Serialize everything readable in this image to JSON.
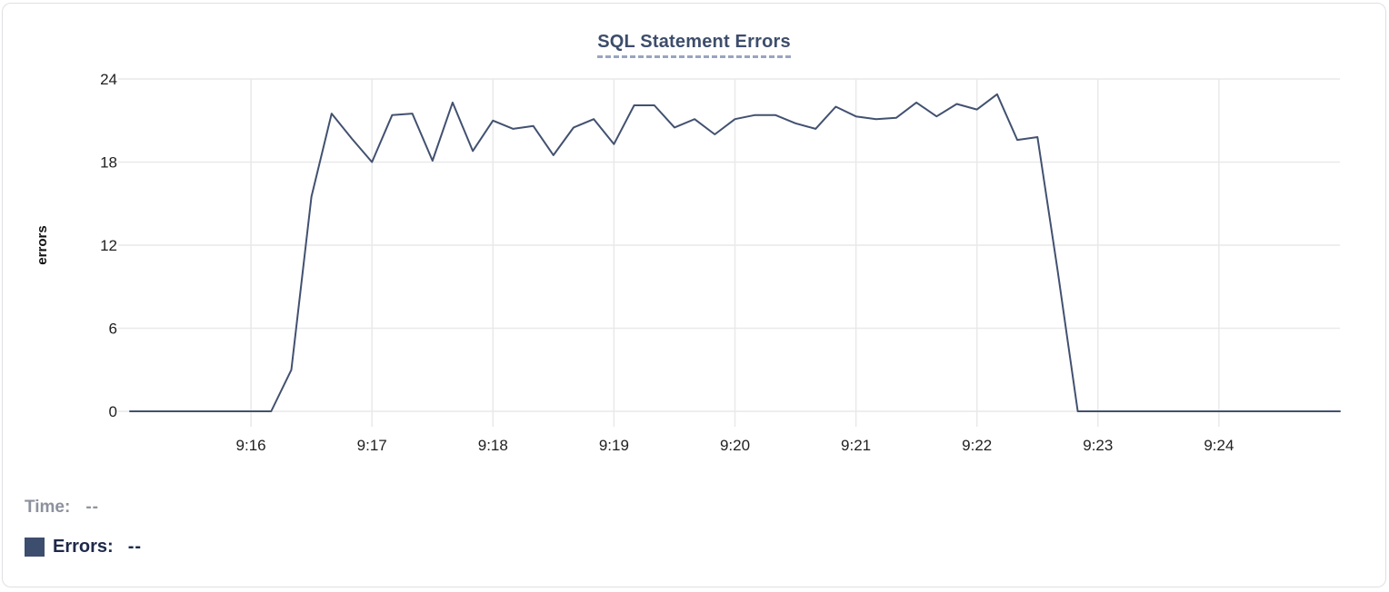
{
  "header": {
    "title": "SQL Statement Errors"
  },
  "tooltip": {
    "time_label": "Time:",
    "time_value": "--",
    "errors_label": "Errors:",
    "errors_value": "--"
  },
  "colors": {
    "line": "#425170",
    "swatch": "#3d4d6e",
    "title": "#3d4d6b",
    "title_underline": "#9aa4c0",
    "grid": "#e9e9e9",
    "tick_text": "#1f1f1f",
    "axis_title_text": "#111111",
    "time_muted": "#8d919c",
    "errors_text": "#1d2949",
    "card_border": "#e0e0e4"
  },
  "icons": {
    "legend_swatch": "square-swatch"
  },
  "chart_data": {
    "type": "line",
    "title": "SQL Statement Errors",
    "xlabel": "",
    "ylabel": "errors",
    "grid": true,
    "legend_position": "bottom-left",
    "ylim": [
      0,
      24
    ],
    "y_ticks": [
      0,
      6,
      12,
      18,
      24
    ],
    "x_ticks": [
      "9:16",
      "9:17",
      "9:18",
      "9:19",
      "9:20",
      "9:21",
      "9:22",
      "9:23",
      "9:24"
    ],
    "x_domain": [
      "9:15:00",
      "9:25:00"
    ],
    "series": [
      {
        "name": "Errors",
        "color": "#425170",
        "points": [
          [
            "9:15:00",
            0
          ],
          [
            "9:15:10",
            0
          ],
          [
            "9:15:20",
            0
          ],
          [
            "9:15:30",
            0
          ],
          [
            "9:15:40",
            0
          ],
          [
            "9:15:50",
            0
          ],
          [
            "9:16:00",
            0
          ],
          [
            "9:16:10",
            0
          ],
          [
            "9:16:20",
            3
          ],
          [
            "9:16:30",
            15.5
          ],
          [
            "9:16:40",
            21.5
          ],
          [
            "9:16:50",
            19.7
          ],
          [
            "9:17:00",
            18
          ],
          [
            "9:17:10",
            21.4
          ],
          [
            "9:17:20",
            21.5
          ],
          [
            "9:17:30",
            18.1
          ],
          [
            "9:17:40",
            22.3
          ],
          [
            "9:17:50",
            18.8
          ],
          [
            "9:18:00",
            21
          ],
          [
            "9:18:10",
            20.4
          ],
          [
            "9:18:20",
            20.6
          ],
          [
            "9:18:30",
            18.5
          ],
          [
            "9:18:40",
            20.5
          ],
          [
            "9:18:50",
            21.1
          ],
          [
            "9:19:00",
            19.3
          ],
          [
            "9:19:10",
            22.1
          ],
          [
            "9:19:20",
            22.1
          ],
          [
            "9:19:30",
            20.5
          ],
          [
            "9:19:40",
            21.1
          ],
          [
            "9:19:50",
            20.0
          ],
          [
            "9:20:00",
            21.1
          ],
          [
            "9:20:10",
            21.4
          ],
          [
            "9:20:20",
            21.4
          ],
          [
            "9:20:30",
            20.8
          ],
          [
            "9:20:40",
            20.4
          ],
          [
            "9:20:50",
            22.0
          ],
          [
            "9:21:00",
            21.3
          ],
          [
            "9:21:10",
            21.1
          ],
          [
            "9:21:20",
            21.2
          ],
          [
            "9:21:30",
            22.3
          ],
          [
            "9:21:40",
            21.3
          ],
          [
            "9:21:50",
            22.2
          ],
          [
            "9:22:00",
            21.8
          ],
          [
            "9:22:10",
            22.9
          ],
          [
            "9:22:20",
            19.6
          ],
          [
            "9:22:30",
            19.8
          ],
          [
            "9:22:40",
            10.2
          ],
          [
            "9:22:50",
            0
          ],
          [
            "9:23:00",
            0
          ],
          [
            "9:23:10",
            0
          ],
          [
            "9:23:20",
            0
          ],
          [
            "9:23:30",
            0
          ],
          [
            "9:23:40",
            0
          ],
          [
            "9:23:50",
            0
          ],
          [
            "9:24:00",
            0
          ],
          [
            "9:24:10",
            0
          ],
          [
            "9:24:20",
            0
          ],
          [
            "9:24:30",
            0
          ],
          [
            "9:24:40",
            0
          ],
          [
            "9:24:50",
            0
          ],
          [
            "9:25:00",
            0
          ]
        ]
      }
    ]
  }
}
